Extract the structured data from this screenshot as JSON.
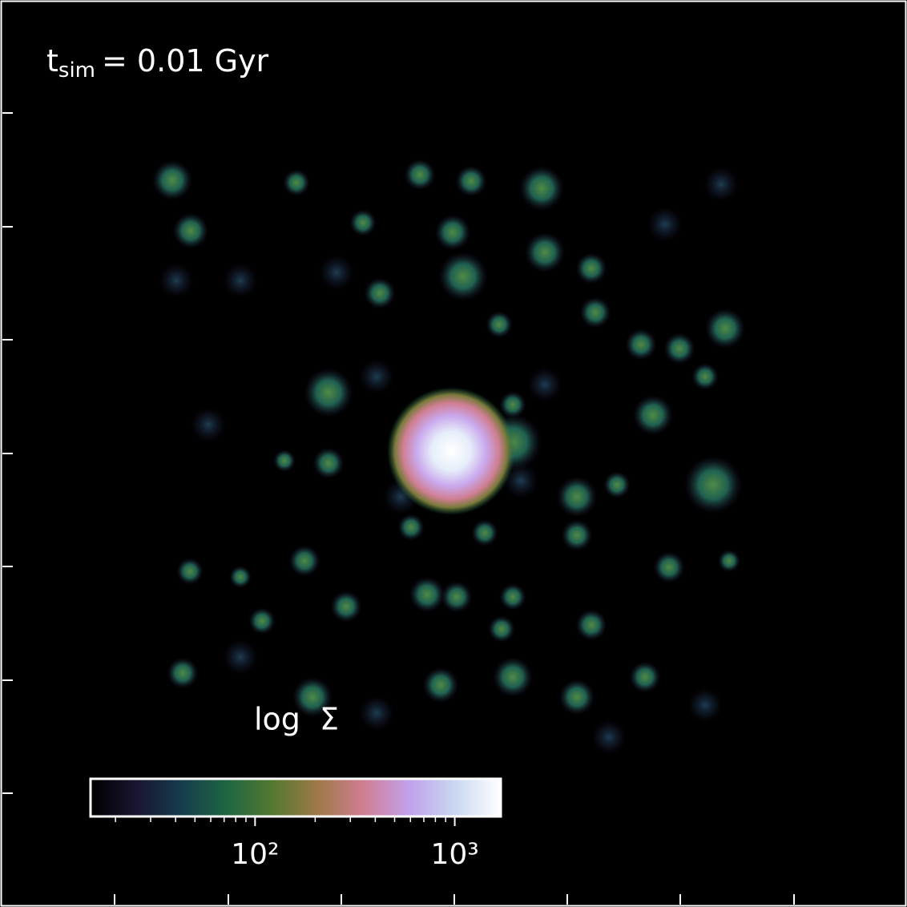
{
  "chart_data": {
    "type": "image",
    "annotation": {
      "base": "t",
      "subscript": "sim",
      "rest": "= 0.01 Gyr"
    },
    "colorbar": {
      "label": "log  Σ",
      "lim": [
        15,
        1700
      ],
      "log": true,
      "ticks": [
        {
          "value": 100,
          "label": "10²"
        },
        {
          "value": 1000,
          "label": "10³"
        }
      ],
      "minor_ticks": [
        20,
        30,
        40,
        50,
        60,
        70,
        80,
        90,
        200,
        300,
        400,
        500,
        600,
        700,
        800,
        900
      ],
      "colors": [
        "#000000",
        "#1a1530",
        "#163d4e",
        "#1f6642",
        "#54792f",
        "#a07949",
        "#d07e93",
        "#c2a1ec",
        "#c8d8f0",
        "#ffffff"
      ]
    }
  }
}
